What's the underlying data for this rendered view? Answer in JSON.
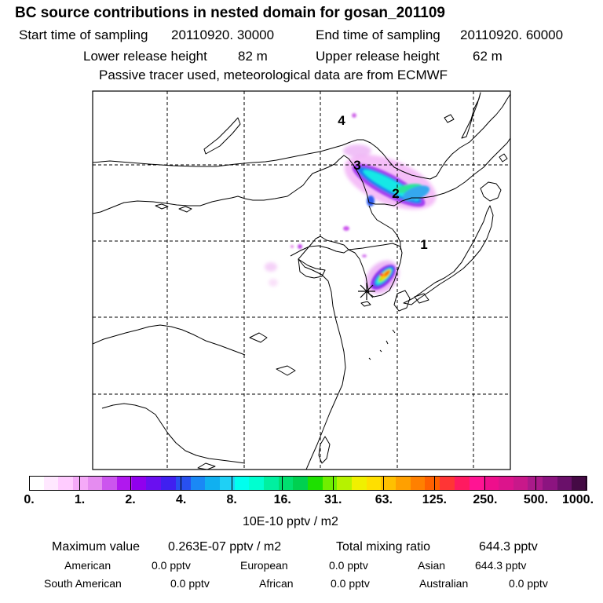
{
  "title": "BC  source contributions in nested domain for gosan_201109",
  "start_label": "Start time of sampling",
  "start_value": "20110920. 30000",
  "end_label": "End time of sampling",
  "end_value": "20110920. 60000",
  "lower_label": "Lower release height",
  "lower_value": "82 m",
  "upper_label": "Upper release height",
  "upper_value": "62 m",
  "tracer_note": "Passive tracer used, meteorological data are from ECMWF",
  "map_labels": [
    "1",
    "2",
    "3",
    "4"
  ],
  "colorbar": {
    "ticks": [
      "0.",
      "1.",
      "2.",
      "4.",
      "8.",
      "16.",
      "31.",
      "63.",
      "125.",
      "250.",
      "500.",
      "1000."
    ],
    "unit": "10E-10 pptv / m2",
    "colors": [
      "#ffffff",
      "#ffe8ff",
      "#ffccff",
      "#f5aaf8",
      "#e58cf0",
      "#cc55ee",
      "#b018ee",
      "#9000ee",
      "#6a0ff0",
      "#4020f0",
      "#2850f0",
      "#1a88f5",
      "#10b0f0",
      "#1fd0f5",
      "#00ffee",
      "#00ffd0",
      "#00f0a0",
      "#00e070",
      "#00d050",
      "#1ee000",
      "#70ee00",
      "#b6f200",
      "#f0f000",
      "#ffdf00",
      "#ffc000",
      "#ffa000",
      "#ff8000",
      "#ff6000",
      "#ff3535",
      "#ff1a60",
      "#ff1493",
      "#ee0f8c",
      "#dc148c",
      "#c8188a",
      "#aa1a8a",
      "#8c1480",
      "#6a106a",
      "#450a45"
    ]
  },
  "summary": {
    "max_label": "Maximum value",
    "max_value": "0.263E-07 pptv / m2",
    "total_label": "Total mixing ratio",
    "total_value": "644.3 pptv"
  },
  "regions": [
    {
      "name": "American",
      "value": "0.0 pptv"
    },
    {
      "name": "European",
      "value": "0.0 pptv"
    },
    {
      "name": "Asian",
      "value": "644.3 pptv"
    },
    {
      "name": "South American",
      "value": "0.0 pptv"
    },
    {
      "name": "African",
      "value": "0.0 pptv"
    },
    {
      "name": "Australian",
      "value": "0.0 pptv"
    }
  ]
}
